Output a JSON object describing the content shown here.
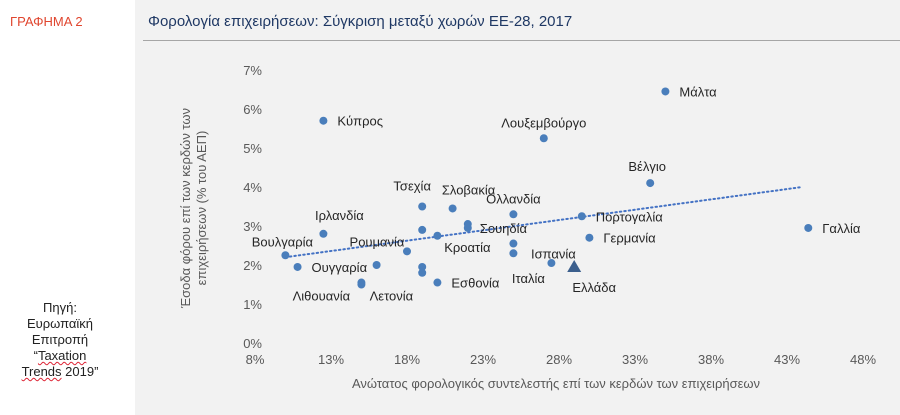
{
  "header": {
    "graph_label": "ΓΡΑΦΗΜΑ 2"
  },
  "source": {
    "line1": "Πηγή:",
    "line2": "Ευρωπαϊκή",
    "line3": "Επιτροπή",
    "line4_quote": "“",
    "line4_word": "Taxation",
    "line5_word": "Trends",
    "line5_rest": " 2019”"
  },
  "chart_data": {
    "type": "scatter",
    "title": "Φορολογία επιχειρήσεων: Σύγκριση μεταξύ χωρών ΕΕ-28, 2017",
    "xlabel": "Ανώτατος φορολογικός συντελεστής επί των κερδών των επιχειρήσεων",
    "ylabel_line1": "Έσοδα φόρου επί των κερδών των",
    "ylabel_line2": "επιχειρήσεων (% του ΑΕΠ)",
    "xlim": [
      8,
      48
    ],
    "ylim": [
      0,
      7
    ],
    "x_ticks": [
      8,
      13,
      18,
      23,
      28,
      33,
      38,
      43,
      48
    ],
    "y_ticks": [
      0,
      1,
      2,
      3,
      4,
      5,
      6,
      7
    ],
    "tick_suffix": "%",
    "colors": {
      "points": "#4a7ebb",
      "highlight": "#3c5f8d",
      "trend": "#4472c4"
    },
    "trendline": {
      "style": "dotted",
      "x": [
        10,
        44
      ],
      "y": [
        2.2,
        4.0
      ]
    },
    "labeled_points": [
      {
        "name": "Μάλτα",
        "x": 35,
        "y": 6.45
      },
      {
        "name": "Κύπρος",
        "x": 12.5,
        "y": 5.7
      },
      {
        "name": "Λουξεμβούργο",
        "x": 27,
        "y": 5.25
      },
      {
        "name": "Βέλγιο",
        "x": 34,
        "y": 4.1
      },
      {
        "name": "Τσεχία",
        "x": 19,
        "y": 3.5
      },
      {
        "name": "Σλοβακία",
        "x": 21,
        "y": 3.45
      },
      {
        "name": "Ολλανδία",
        "x": 25,
        "y": 3.3
      },
      {
        "name": "Πορτογαλία",
        "x": 29.5,
        "y": 3.25
      },
      {
        "name": "Ιρλανδία",
        "x": 12.5,
        "y": 2.8
      },
      {
        "name": "Σουηδία",
        "x": 22,
        "y": 2.95
      },
      {
        "name": "Γερμανία",
        "x": 30,
        "y": 2.7
      },
      {
        "name": "Γαλλία",
        "x": 44.4,
        "y": 2.95
      },
      {
        "name": "Βουλγαρία",
        "x": 10,
        "y": 2.25
      },
      {
        "name": "Ρουμανία",
        "x": 18,
        "y": 2.35
      },
      {
        "name": "Ισπανία",
        "x": 25,
        "y": 2.3
      },
      {
        "name": "Κροατία",
        "x": 20,
        "y": 2.75
      },
      {
        "name": "Ουγγαρία",
        "x": 10.8,
        "y": 1.95
      },
      {
        "name": "Ιταλία",
        "x": 27.5,
        "y": 2.05
      },
      {
        "name": "Λιθουανία",
        "x": 15,
        "y": 1.55
      },
      {
        "name": "Λετονία",
        "x": 15,
        "y": 1.5
      },
      {
        "name": "Εσθονία",
        "x": 20,
        "y": 1.55
      }
    ],
    "unlabeled_points": [
      {
        "x": 16,
        "y": 2.0
      },
      {
        "x": 19,
        "y": 2.9
      },
      {
        "x": 22,
        "y": 3.05
      },
      {
        "x": 25,
        "y": 2.55
      },
      {
        "x": 19,
        "y": 1.95
      },
      {
        "x": 19,
        "y": 1.8
      }
    ],
    "highlight": {
      "name": "Ελλάδα",
      "x": 29,
      "y": 1.95,
      "marker": "triangle"
    }
  }
}
